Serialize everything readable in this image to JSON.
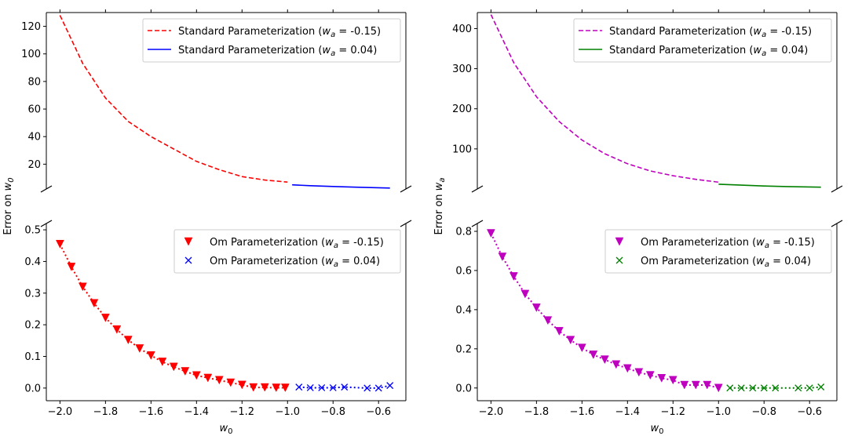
{
  "chart_data": [
    {
      "type": "line",
      "panel": "left-top",
      "ylim": [
        2,
        130
      ],
      "xlim": [
        -2.06,
        -0.48
      ],
      "yticks": [
        20,
        40,
        60,
        80,
        100,
        120
      ],
      "ylabel": "Error on w0",
      "ylabel_parts": {
        "main": "Error on ",
        "var": "w",
        "sub": "0"
      },
      "legend_position": "top-right",
      "series": [
        {
          "name": "Standard Parameterization (w_a = -0.15)",
          "label_main": "Standard Parameterization (",
          "label_var": "w",
          "label_sub": "a",
          "label_rest": " = -0.15)",
          "color": "#ff0000",
          "style": "dashed",
          "x": [
            -2.0,
            -1.9,
            -1.8,
            -1.7,
            -1.6,
            -1.5,
            -1.4,
            -1.3,
            -1.2,
            -1.1,
            -1.0
          ],
          "y": [
            128,
            93,
            68,
            51,
            40,
            31,
            22,
            16,
            11,
            8.5,
            7
          ]
        },
        {
          "name": "Standard Parameterization (w_a = 0.04)",
          "label_main": "Standard Parameterization (",
          "label_var": "w",
          "label_sub": "a",
          "label_rest": " = 0.04)",
          "color": "#0000ff",
          "style": "solid",
          "x": [
            -0.98,
            -0.9,
            -0.8,
            -0.7,
            -0.6,
            -0.55
          ],
          "y": [
            5,
            4.4,
            3.8,
            3.3,
            2.9,
            2.7
          ]
        }
      ]
    },
    {
      "type": "scatter",
      "panel": "left-bottom",
      "ylim": [
        -0.04,
        0.52
      ],
      "xlim": [
        -2.06,
        -0.48
      ],
      "yticks": [
        0.0,
        0.1,
        0.2,
        0.3,
        0.4,
        0.5
      ],
      "ytick_labels": [
        "0.0",
        "0.1",
        "0.2",
        "0.3",
        "0.4",
        "0.5"
      ],
      "xticks": [
        -2.0,
        -1.8,
        -1.6,
        -1.4,
        -1.2,
        -1.0,
        -0.8,
        -0.6
      ],
      "xtick_labels": [
        "−2.0",
        "−1.8",
        "−1.6",
        "−1.4",
        "−1.2",
        "−1.0",
        "−0.8",
        "−0.6"
      ],
      "xlabel": "w0",
      "legend_position": "top-right",
      "series": [
        {
          "name": "Om Parameterization (w_a = -0.15)",
          "label_main": "Om Parameterization (",
          "label_var": "w",
          "label_sub": "a",
          "label_rest": " = -0.15)",
          "color": "#ff0000",
          "marker": "triangle-down",
          "x": [
            -2.0,
            -1.95,
            -1.9,
            -1.85,
            -1.8,
            -1.75,
            -1.7,
            -1.65,
            -1.6,
            -1.55,
            -1.5,
            -1.45,
            -1.4,
            -1.35,
            -1.3,
            -1.25,
            -1.2,
            -1.15,
            -1.1,
            -1.05,
            -1.01
          ],
          "y": [
            0.455,
            0.383,
            0.32,
            0.268,
            0.222,
            0.185,
            0.152,
            0.125,
            0.103,
            0.083,
            0.067,
            0.053,
            0.04,
            0.032,
            0.025,
            0.017,
            0.01,
            0.002,
            0.002,
            0.001,
            0.001
          ]
        },
        {
          "name": "Om Parameterization (w_a = 0.04)",
          "label_main": "Om Parameterization (",
          "label_var": "w",
          "label_sub": "a",
          "label_rest": " = 0.04)",
          "color": "#0000ff",
          "marker": "x",
          "x": [
            -0.95,
            -0.9,
            -0.85,
            -0.8,
            -0.75,
            -0.65,
            -0.6,
            -0.55
          ],
          "y": [
            0.003,
            0.001,
            0.001,
            0.001,
            0.003,
            0.0,
            0.0,
            0.008
          ]
        }
      ]
    },
    {
      "type": "line",
      "panel": "right-top",
      "ylim": [
        0,
        440
      ],
      "xlim": [
        -2.06,
        -0.48
      ],
      "yticks": [
        100,
        200,
        300,
        400
      ],
      "ylabel": "Error on wa",
      "ylabel_parts": {
        "main": "Error on ",
        "var": "w",
        "sub": "a"
      },
      "legend_position": "top-right",
      "series": [
        {
          "name": "Standard Parameterization (w_a = -0.15)",
          "label_main": "Standard Parameterization (",
          "label_var": "w",
          "label_sub": "a",
          "label_rest": " = -0.15)",
          "color": "#bf00bf",
          "style": "dashed",
          "x": [
            -2.0,
            -1.9,
            -1.8,
            -1.7,
            -1.6,
            -1.5,
            -1.4,
            -1.3,
            -1.2,
            -1.1,
            -1.0
          ],
          "y": [
            435,
            315,
            230,
            168,
            122,
            88,
            63,
            45,
            33,
            24,
            17
          ]
        },
        {
          "name": "Standard Parameterization (w_a = 0.04)",
          "label_main": "Standard Parameterization (",
          "label_var": "w",
          "label_sub": "a",
          "label_rest": " = 0.04)",
          "color": "#008000",
          "style": "solid",
          "x": [
            -1.0,
            -0.9,
            -0.8,
            -0.7,
            -0.6,
            -0.55
          ],
          "y": [
            12,
            9.5,
            7.5,
            6,
            5,
            4.5
          ]
        }
      ]
    },
    {
      "type": "scatter",
      "panel": "right-bottom",
      "ylim": [
        -0.065,
        0.84
      ],
      "xlim": [
        -2.06,
        -0.48
      ],
      "yticks": [
        0.0,
        0.2,
        0.4,
        0.6,
        0.8
      ],
      "ytick_labels": [
        "0.0",
        "0.2",
        "0.4",
        "0.6",
        "0.8"
      ],
      "xticks": [
        -2.0,
        -1.8,
        -1.6,
        -1.4,
        -1.2,
        -1.0,
        -0.8,
        -0.6
      ],
      "xtick_labels": [
        "−2.0",
        "−1.8",
        "−1.6",
        "−1.4",
        "−1.2",
        "−1.0",
        "−0.8",
        "−0.6"
      ],
      "xlabel": "w0",
      "legend_position": "top-right",
      "series": [
        {
          "name": "Om Parameterization (w_a = -0.15)",
          "label_main": "Om Parameterization (",
          "label_var": "w",
          "label_sub": "a",
          "label_rest": " = -0.15)",
          "color": "#bf00bf",
          "marker": "triangle-down",
          "x": [
            -2.0,
            -1.95,
            -1.9,
            -1.85,
            -1.8,
            -1.75,
            -1.7,
            -1.65,
            -1.6,
            -1.55,
            -1.5,
            -1.45,
            -1.4,
            -1.35,
            -1.3,
            -1.25,
            -1.2,
            -1.15,
            -1.1,
            -1.05,
            -1.0
          ],
          "y": [
            0.79,
            0.67,
            0.57,
            0.48,
            0.41,
            0.345,
            0.29,
            0.245,
            0.205,
            0.17,
            0.145,
            0.12,
            0.1,
            0.08,
            0.065,
            0.05,
            0.04,
            0.015,
            0.015,
            0.015,
            0.0
          ]
        },
        {
          "name": "Om Parameterization (w_a = 0.04)",
          "label_main": "Om Parameterization (",
          "label_var": "w",
          "label_sub": "a",
          "label_rest": " = 0.04)",
          "color": "#008000",
          "marker": "x",
          "x": [
            -0.95,
            -0.9,
            -0.85,
            -0.8,
            -0.75,
            -0.65,
            -0.6,
            -0.55
          ],
          "y": [
            0.0,
            0.0,
            0.0,
            0.0,
            0.0,
            0.0,
            0.0,
            0.005
          ]
        }
      ]
    }
  ]
}
